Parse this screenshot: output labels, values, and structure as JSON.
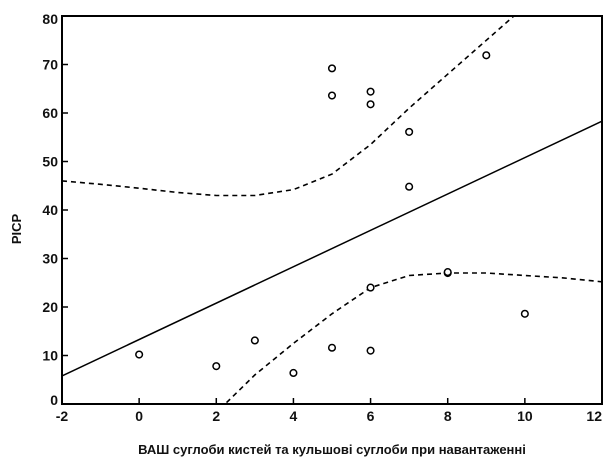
{
  "chart_data": {
    "type": "scatter",
    "title": "",
    "xlabel": "ВАШ суглоби кистей та кульшові суглоби при навантаженні",
    "ylabel": "PICP",
    "xlim": [
      -2,
      12
    ],
    "ylim": [
      0,
      80
    ],
    "xticks": [
      -2,
      0,
      2,
      4,
      6,
      8,
      10,
      12
    ],
    "yticks": [
      0,
      10,
      20,
      30,
      40,
      50,
      60,
      70,
      80
    ],
    "grid": false,
    "series": [
      {
        "type": "scatter",
        "marker": "open-circle",
        "points": [
          {
            "x": 0,
            "y": 10.2
          },
          {
            "x": 2,
            "y": 7.8
          },
          {
            "x": 3,
            "y": 13.1
          },
          {
            "x": 4,
            "y": 6.4
          },
          {
            "x": 5,
            "y": 11.6
          },
          {
            "x": 5,
            "y": 63.6
          },
          {
            "x": 5,
            "y": 69.2
          },
          {
            "x": 6,
            "y": 11.0
          },
          {
            "x": 6,
            "y": 24.0
          },
          {
            "x": 6,
            "y": 61.8
          },
          {
            "x": 6,
            "y": 64.4
          },
          {
            "x": 7,
            "y": 44.8
          },
          {
            "x": 7,
            "y": 56.1
          },
          {
            "x": 8,
            "y": 27.0
          },
          {
            "x": 8,
            "y": 27.2
          },
          {
            "x": 9,
            "y": 71.9
          },
          {
            "x": 10,
            "y": 18.6
          }
        ]
      },
      {
        "type": "line",
        "style": "solid",
        "points": [
          {
            "x": -2,
            "y": 5.8
          },
          {
            "x": 12,
            "y": 58.3
          }
        ]
      },
      {
        "type": "line",
        "style": "dashed",
        "points": [
          {
            "x": -2,
            "y": 46.0
          },
          {
            "x": -1,
            "y": 45.3
          },
          {
            "x": 0,
            "y": 44.5
          },
          {
            "x": 1,
            "y": 43.6
          },
          {
            "x": 2,
            "y": 43.0
          },
          {
            "x": 3,
            "y": 43.0
          },
          {
            "x": 4,
            "y": 44.2
          },
          {
            "x": 5,
            "y": 47.4
          },
          {
            "x": 6,
            "y": 53.5
          },
          {
            "x": 7,
            "y": 61.0
          },
          {
            "x": 8,
            "y": 68.0
          },
          {
            "x": 9,
            "y": 75.0
          },
          {
            "x": 10,
            "y": 82.0
          }
        ]
      },
      {
        "type": "line",
        "style": "dashed",
        "points": [
          {
            "x": 2.1,
            "y": -1.0
          },
          {
            "x": 3,
            "y": 6.0
          },
          {
            "x": 4,
            "y": 12.5
          },
          {
            "x": 5,
            "y": 18.6
          },
          {
            "x": 6,
            "y": 24.0
          },
          {
            "x": 7,
            "y": 26.5
          },
          {
            "x": 8,
            "y": 27.0
          },
          {
            "x": 9,
            "y": 27.0
          },
          {
            "x": 10,
            "y": 26.5
          },
          {
            "x": 11,
            "y": 26.0
          },
          {
            "x": 12,
            "y": 25.2
          }
        ]
      }
    ]
  }
}
